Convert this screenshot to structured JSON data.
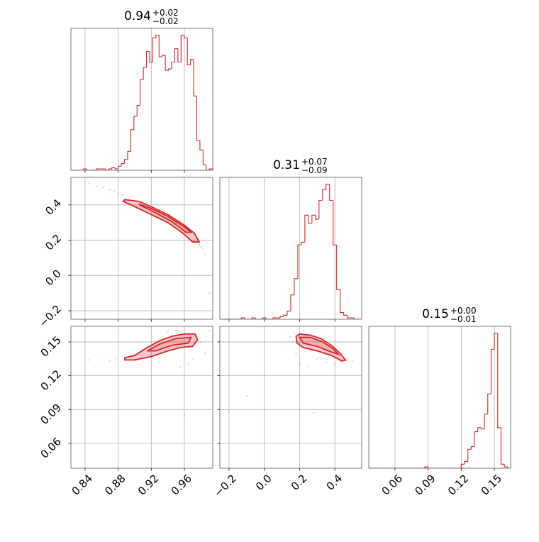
{
  "chart_data": [
    {
      "type": "histogram",
      "color": "#d62728",
      "grid": true,
      "title": {
        "value": "0.94",
        "plus": "+0.02",
        "minus": "−0.02"
      },
      "xlim": [
        0.8229,
        0.9943
      ],
      "xticks": [
        0.84,
        0.88,
        0.92,
        0.96
      ],
      "x_ticklabels": false,
      "ylim": [
        0,
        105
      ],
      "bins": [
        0.823,
        0.8268,
        0.8306,
        0.8344,
        0.8382,
        0.842,
        0.8458,
        0.8496,
        0.8534,
        0.8572,
        0.861,
        0.8648,
        0.8686,
        0.8724,
        0.8762,
        0.88,
        0.8838,
        0.8876,
        0.8914,
        0.8952,
        0.899,
        0.9028,
        0.9066,
        0.9104,
        0.9142,
        0.918,
        0.9218,
        0.9256,
        0.9294,
        0.9332,
        0.937,
        0.9408,
        0.9446,
        0.9484,
        0.9522,
        0.956,
        0.9598,
        0.9636,
        0.9674,
        0.9712,
        0.975,
        0.9788,
        0.9826,
        0.9864,
        0.9902,
        0.994
      ],
      "values": [
        0,
        0,
        0,
        0,
        1,
        0,
        0,
        0,
        1,
        1,
        1,
        0,
        1,
        2,
        1,
        3,
        5,
        8,
        14,
        30,
        40,
        48,
        67,
        76,
        88,
        80,
        98,
        100,
        84,
        85,
        74,
        75,
        80,
        90,
        80,
        100,
        98,
        78,
        82,
        55,
        22,
        15,
        4,
        0,
        1
      ]
    },
    {
      "type": "contour",
      "color": "#d62728",
      "grid": true,
      "xlim": [
        0.8229,
        0.9943
      ],
      "xticks": [
        0.84,
        0.88,
        0.92,
        0.96
      ],
      "x_ticklabels": false,
      "ylim": [
        -0.248,
        0.556
      ],
      "yticks": [
        {
          "value": -0.2,
          "label": "−0.2"
        },
        {
          "value": 0,
          "label": "0.0"
        },
        0.2,
        0.4
      ],
      "y_ticklabels": true,
      "points": {
        "x": [
          0.845,
          0.855,
          0.862,
          0.87,
          0.875,
          0.88,
          0.885,
          0.972,
          0.978,
          0.982,
          0.985,
          0.98,
          0.99,
          0.95,
          0.93
        ],
        "y": [
          0.52,
          0.505,
          0.5,
          0.485,
          0.48,
          0.465,
          0.455,
          0.2,
          0.175,
          0.15,
          0.12,
          0.16,
          -0.1,
          0.3,
          0.37
        ]
      },
      "contours": [
        {
          "x": [
            0.888,
            0.905,
            0.92,
            0.94,
            0.96,
            0.972,
            0.978,
            0.97,
            0.958,
            0.94,
            0.92,
            0.9,
            0.886
          ],
          "y": [
            0.43,
            0.42,
            0.39,
            0.345,
            0.285,
            0.24,
            0.19,
            0.19,
            0.24,
            0.3,
            0.345,
            0.39,
            0.42
          ]
        },
        {
          "x": [
            0.905,
            0.92,
            0.94,
            0.96,
            0.968,
            0.962,
            0.945,
            0.925,
            0.908
          ],
          "y": [
            0.405,
            0.38,
            0.335,
            0.275,
            0.245,
            0.245,
            0.305,
            0.355,
            0.395
          ]
        }
      ]
    },
    {
      "type": "histogram",
      "color": "#d62728",
      "grid": true,
      "title": {
        "value": "0.31",
        "plus": "+0.07",
        "minus": "−0.09"
      },
      "xlim": [
        -0.252,
        0.552
      ],
      "xticks": [
        {
          "value": -0.2,
          "label": "−0.2"
        },
        {
          "value": 0,
          "label": "0.0"
        },
        0.2,
        0.4
      ],
      "x_ticklabels": false,
      "ylim": [
        0,
        105
      ],
      "bins": [
        -0.25,
        -0.23,
        -0.21,
        -0.19,
        -0.17,
        -0.15,
        -0.13,
        -0.11,
        -0.09,
        -0.07,
        -0.05,
        -0.03,
        -0.01,
        0.01,
        0.03,
        0.05,
        0.07,
        0.09,
        0.11,
        0.13,
        0.15,
        0.17,
        0.19,
        0.21,
        0.23,
        0.25,
        0.27,
        0.29,
        0.31,
        0.33,
        0.35,
        0.37,
        0.39,
        0.41,
        0.43,
        0.45,
        0.47,
        0.49,
        0.51,
        0.53,
        0.55
      ],
      "values": [
        0,
        0,
        0,
        0,
        0,
        0,
        1,
        0,
        0,
        1,
        0,
        0,
        1,
        0,
        0,
        1,
        1,
        2,
        3,
        6,
        18,
        30,
        55,
        57,
        77,
        71,
        77,
        74,
        88,
        96,
        100,
        88,
        55,
        22,
        5,
        3,
        1,
        1,
        0,
        0
      ]
    },
    {
      "type": "contour",
      "color": "#d62728",
      "grid": true,
      "xlim": [
        0.8229,
        0.9943
      ],
      "xticks": [
        0.84,
        0.88,
        0.92,
        0.96
      ],
      "x_ticklabels": true,
      "ylim": [
        0.038,
        0.1638
      ],
      "yticks": [
        0.06,
        0.09,
        0.12,
        0.15
      ],
      "y_ticklabels": true,
      "points": {
        "x": [
          0.845,
          0.86,
          0.87,
          0.878,
          0.98,
          0.985,
          0.99,
          0.965,
          0.955,
          0.97,
          0.93,
          0.94,
          0.96,
          0.985,
          0.95
        ],
        "y": [
          0.134,
          0.134,
          0.133,
          0.134,
          0.15,
          0.155,
          0.16,
          0.13,
          0.128,
          0.135,
          0.132,
          0.159,
          0.085,
          0.14,
          0.16
        ]
      },
      "contours": [
        {
          "x": [
            0.888,
            0.9,
            0.915,
            0.93,
            0.945,
            0.96,
            0.973,
            0.976,
            0.97,
            0.955,
            0.94,
            0.92,
            0.9,
            0.888
          ],
          "y": [
            0.136,
            0.138,
            0.145,
            0.151,
            0.155,
            0.157,
            0.157,
            0.152,
            0.146,
            0.145,
            0.142,
            0.137,
            0.134,
            0.134
          ]
        },
        {
          "x": [
            0.915,
            0.93,
            0.95,
            0.968,
            0.965,
            0.945,
            0.925
          ],
          "y": [
            0.142,
            0.148,
            0.153,
            0.154,
            0.149,
            0.147,
            0.142
          ]
        }
      ]
    },
    {
      "type": "contour",
      "color": "#d62728",
      "grid": true,
      "xlim": [
        -0.252,
        0.552
      ],
      "xticks": [
        {
          "value": -0.2,
          "label": "−0.2"
        },
        {
          "value": 0,
          "label": "0.0"
        },
        0.2,
        0.4
      ],
      "x_ticklabels": true,
      "ylim": [
        0.038,
        0.1638
      ],
      "yticks": [
        0.06,
        0.09,
        0.12,
        0.15
      ],
      "y_ticklabels": false,
      "points": {
        "x": [
          0.15,
          0.16,
          0.18,
          0.2,
          0.25,
          0.3,
          0.47,
          0.5,
          0.4,
          0.35,
          0.17,
          0.22,
          -0.1,
          -0.2,
          0.28
        ],
        "y": [
          0.155,
          0.15,
          0.14,
          0.13,
          0.128,
          0.135,
          0.134,
          0.133,
          0.13,
          0.132,
          0.158,
          0.16,
          0.102,
          0.088,
          0.087
        ]
      },
      "contours": [
        {
          "x": [
            0.18,
            0.2,
            0.26,
            0.32,
            0.38,
            0.43,
            0.46,
            0.44,
            0.38,
            0.3,
            0.22,
            0.185
          ],
          "y": [
            0.155,
            0.157,
            0.156,
            0.153,
            0.147,
            0.14,
            0.134,
            0.133,
            0.138,
            0.142,
            0.145,
            0.149
          ]
        },
        {
          "x": [
            0.2,
            0.26,
            0.33,
            0.39,
            0.42,
            0.38,
            0.3,
            0.22
          ],
          "y": [
            0.154,
            0.154,
            0.15,
            0.144,
            0.139,
            0.141,
            0.146,
            0.149
          ]
        }
      ]
    },
    {
      "type": "histogram",
      "color": "#d62728",
      "grid": true,
      "title": {
        "value": "0.15",
        "plus": "+0.00",
        "minus": "−0.01"
      },
      "xlim": [
        0.0363,
        0.1647
      ],
      "xticks": [
        0.06,
        0.09,
        0.12,
        0.15
      ],
      "x_ticklabels": true,
      "ylim": [
        0,
        105
      ],
      "bins": [
        0.036,
        0.039,
        0.042,
        0.045,
        0.048,
        0.051,
        0.054,
        0.057,
        0.06,
        0.063,
        0.066,
        0.069,
        0.072,
        0.075,
        0.078,
        0.081,
        0.084,
        0.087,
        0.09,
        0.093,
        0.096,
        0.099,
        0.102,
        0.105,
        0.108,
        0.111,
        0.114,
        0.117,
        0.12,
        0.123,
        0.126,
        0.129,
        0.132,
        0.135,
        0.138,
        0.141,
        0.144,
        0.147,
        0.15,
        0.153,
        0.156,
        0.159,
        0.162,
        0.165
      ],
      "values": [
        0,
        0,
        0,
        0,
        0,
        0,
        0,
        0,
        0,
        0,
        0,
        0,
        0,
        0,
        0,
        0,
        0,
        1,
        0,
        0,
        0,
        0,
        0,
        0,
        0,
        0,
        0,
        0,
        3,
        5,
        14,
        16,
        27,
        30,
        29,
        40,
        55,
        88,
        100,
        30,
        3,
        1,
        0
      ]
    }
  ]
}
